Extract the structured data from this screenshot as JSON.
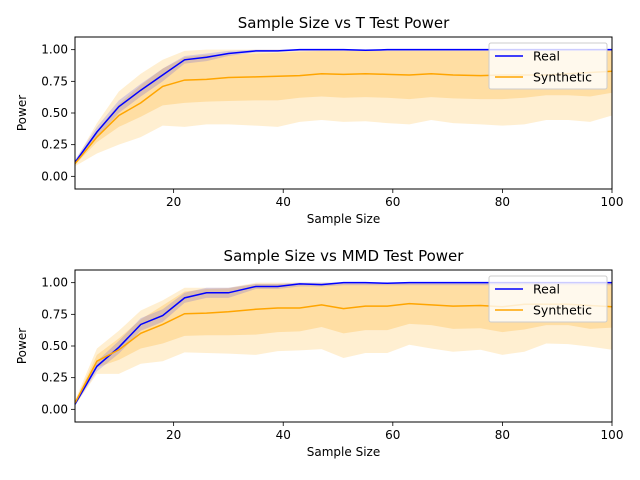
{
  "chart_data": [
    {
      "type": "line",
      "title": "Sample Size vs T Test Power",
      "xlabel": "Sample Size",
      "ylabel": "Power",
      "xlim": [
        2,
        100
      ],
      "ylim": [
        -0.1,
        1.1
      ],
      "xticks": [
        20,
        40,
        60,
        80,
        100
      ],
      "yticks": [
        0.0,
        0.25,
        0.5,
        0.75,
        1.0
      ],
      "ytick_labels": [
        "0.00",
        "0.25",
        "0.50",
        "0.75",
        "1.00"
      ],
      "grid": false,
      "legend": "top-right",
      "x": [
        2,
        6,
        10,
        14,
        18,
        22,
        26,
        30,
        35,
        39,
        43,
        47,
        51,
        55,
        59,
        63,
        67,
        71,
        76,
        80,
        84,
        88,
        92,
        96,
        100
      ],
      "series": [
        {
          "name": "Real",
          "color": "#0000ff",
          "values": [
            0.11,
            0.35,
            0.55,
            0.68,
            0.8,
            0.92,
            0.94,
            0.97,
            0.99,
            0.99,
            1.0,
            1.0,
            1.0,
            0.995,
            1.0,
            1.0,
            1.0,
            1.0,
            1.0,
            1.0,
            1.0,
            1.0,
            1.0,
            1.0,
            1.0
          ],
          "band_outer": {
            "lower": [
              0.09,
              0.31,
              0.5,
              0.63,
              0.75,
              0.89,
              0.91,
              0.95,
              0.98,
              0.985,
              0.99,
              0.99,
              0.99,
              0.99,
              0.99,
              0.99,
              0.99,
              0.99,
              0.99,
              0.99,
              0.99,
              0.99,
              0.99,
              0.99,
              0.99
            ],
            "upper": [
              0.13,
              0.39,
              0.6,
              0.73,
              0.85,
              0.95,
              0.97,
              0.99,
              1.0,
              1.0,
              1.0,
              1.0,
              1.0,
              1.0,
              1.0,
              1.0,
              1.0,
              1.0,
              1.0,
              1.0,
              1.0,
              1.0,
              1.0,
              1.0,
              1.0
            ]
          }
        },
        {
          "name": "Synthetic",
          "color": "#ffa500",
          "values": [
            0.1,
            0.31,
            0.48,
            0.58,
            0.71,
            0.76,
            0.765,
            0.78,
            0.785,
            0.79,
            0.795,
            0.81,
            0.805,
            0.81,
            0.805,
            0.8,
            0.81,
            0.8,
            0.795,
            0.8,
            0.8,
            0.8,
            0.81,
            0.82,
            0.83
          ],
          "band_inner": {
            "lower": [
              0.09,
              0.27,
              0.39,
              0.47,
              0.56,
              0.58,
              0.59,
              0.595,
              0.6,
              0.6,
              0.62,
              0.63,
              0.62,
              0.625,
              0.62,
              0.61,
              0.625,
              0.615,
              0.61,
              0.61,
              0.62,
              0.64,
              0.64,
              0.63,
              0.66
            ],
            "upper": [
              0.11,
              0.36,
              0.57,
              0.72,
              0.85,
              0.94,
              0.96,
              0.96,
              0.97,
              0.975,
              0.985,
              0.99,
              0.99,
              0.99,
              0.99,
              0.99,
              0.99,
              0.99,
              0.99,
              0.99,
              0.99,
              0.99,
              0.99,
              0.99,
              0.99
            ]
          },
          "band_outer": {
            "lower": [
              0.08,
              0.18,
              0.25,
              0.31,
              0.4,
              0.39,
              0.41,
              0.41,
              0.4,
              0.39,
              0.43,
              0.445,
              0.43,
              0.435,
              0.42,
              0.41,
              0.445,
              0.42,
              0.41,
              0.4,
              0.41,
              0.445,
              0.445,
              0.43,
              0.48
            ],
            "upper": [
              0.12,
              0.42,
              0.67,
              0.81,
              0.92,
              0.99,
              1.0,
              1.0,
              1.0,
              1.0,
              1.0,
              1.0,
              1.0,
              1.0,
              1.0,
              1.0,
              1.0,
              1.0,
              1.0,
              1.0,
              1.0,
              1.0,
              1.0,
              1.0,
              1.0
            ]
          }
        }
      ]
    },
    {
      "type": "line",
      "title": "Sample Size vs MMD Test Power",
      "xlabel": "Sample Size",
      "ylabel": "Power",
      "xlim": [
        2,
        100
      ],
      "ylim": [
        -0.1,
        1.1
      ],
      "xticks": [
        20,
        40,
        60,
        80,
        100
      ],
      "yticks": [
        0.0,
        0.25,
        0.5,
        0.75,
        1.0
      ],
      "ytick_labels": [
        "0.00",
        "0.25",
        "0.50",
        "0.75",
        "1.00"
      ],
      "grid": false,
      "legend": "top-right",
      "x": [
        2,
        6,
        10,
        14,
        18,
        22,
        26,
        30,
        35,
        39,
        43,
        47,
        51,
        55,
        59,
        63,
        67,
        71,
        76,
        80,
        84,
        88,
        92,
        96,
        100
      ],
      "series": [
        {
          "name": "Real",
          "color": "#0000ff",
          "values": [
            0.04,
            0.34,
            0.49,
            0.67,
            0.74,
            0.88,
            0.92,
            0.92,
            0.97,
            0.97,
            0.99,
            0.985,
            1.0,
            1.0,
            0.995,
            1.0,
            1.0,
            1.0,
            1.0,
            1.0,
            1.0,
            1.0,
            1.0,
            1.0,
            1.0
          ],
          "band_outer": {
            "lower": [
              0.03,
              0.3,
              0.44,
              0.62,
              0.69,
              0.84,
              0.88,
              0.88,
              0.95,
              0.95,
              0.97,
              0.97,
              0.98,
              0.98,
              0.98,
              0.98,
              0.98,
              0.98,
              0.98,
              0.98,
              0.98,
              0.98,
              0.98,
              0.98,
              0.98
            ],
            "upper": [
              0.05,
              0.38,
              0.54,
              0.72,
              0.79,
              0.92,
              0.96,
              0.96,
              0.99,
              0.99,
              1.0,
              1.0,
              1.0,
              1.0,
              1.0,
              1.0,
              1.0,
              1.0,
              1.0,
              1.0,
              1.0,
              1.0,
              1.0,
              1.0,
              1.0
            ]
          }
        },
        {
          "name": "Synthetic",
          "color": "#ffa500",
          "values": [
            0.05,
            0.38,
            0.47,
            0.6,
            0.67,
            0.755,
            0.76,
            0.77,
            0.79,
            0.8,
            0.8,
            0.825,
            0.795,
            0.815,
            0.815,
            0.835,
            0.825,
            0.815,
            0.82,
            0.81,
            0.83,
            0.83,
            0.83,
            0.82,
            0.81
          ],
          "band_inner": {
            "lower": [
              0.04,
              0.33,
              0.39,
              0.48,
              0.52,
              0.58,
              0.585,
              0.585,
              0.59,
              0.61,
              0.615,
              0.65,
              0.6,
              0.625,
              0.625,
              0.675,
              0.665,
              0.635,
              0.64,
              0.61,
              0.63,
              0.665,
              0.665,
              0.635,
              0.645
            ],
            "upper": [
              0.06,
              0.43,
              0.56,
              0.71,
              0.82,
              0.93,
              0.95,
              0.955,
              0.99,
              0.99,
              0.99,
              0.99,
              0.99,
              0.99,
              0.99,
              0.99,
              0.99,
              0.99,
              0.99,
              0.99,
              0.99,
              0.99,
              0.99,
              0.99,
              0.99
            ]
          },
          "band_outer": {
            "lower": [
              0.03,
              0.28,
              0.28,
              0.36,
              0.38,
              0.45,
              0.445,
              0.44,
              0.43,
              0.46,
              0.465,
              0.475,
              0.405,
              0.445,
              0.445,
              0.51,
              0.48,
              0.455,
              0.47,
              0.43,
              0.455,
              0.52,
              0.515,
              0.495,
              0.47
            ],
            "upper": [
              0.07,
              0.48,
              0.62,
              0.78,
              0.86,
              0.96,
              0.96,
              0.96,
              1.0,
              1.0,
              1.0,
              1.0,
              1.0,
              1.0,
              1.0,
              1.0,
              1.0,
              1.0,
              1.0,
              1.0,
              1.0,
              1.0,
              1.0,
              1.0,
              1.0
            ]
          }
        }
      ]
    }
  ]
}
